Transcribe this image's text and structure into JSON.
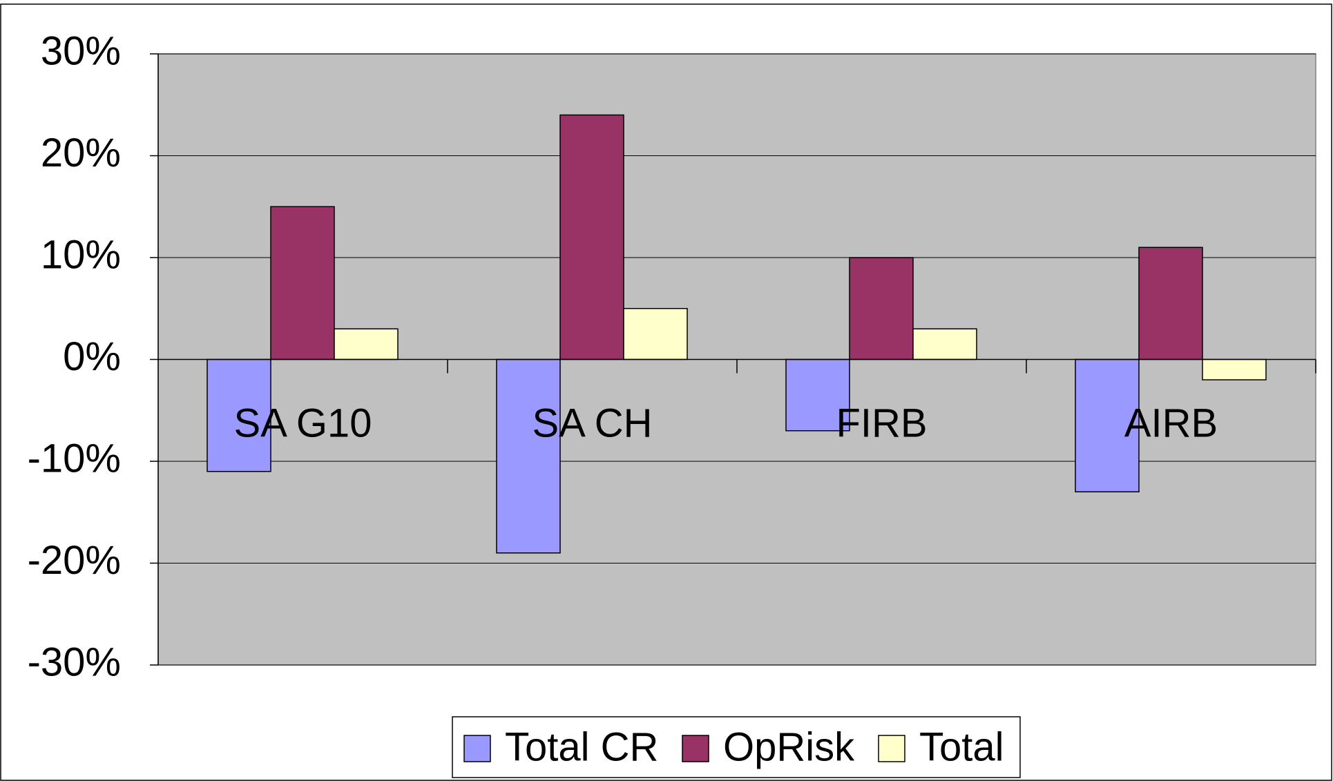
{
  "chart_data": {
    "type": "bar",
    "categories": [
      "SA G10",
      "SA CH",
      "FIRB",
      "AIRB"
    ],
    "series": [
      {
        "name": "Total CR",
        "color": "#9999ff",
        "values": [
          -11,
          -19,
          -7,
          -13
        ]
      },
      {
        "name": "OpRisk",
        "color": "#993366",
        "values": [
          15,
          24,
          10,
          11
        ]
      },
      {
        "name": "Total",
        "color": "#ffffcc",
        "values": [
          3,
          5,
          3,
          -2
        ]
      }
    ],
    "ylim": [
      -30,
      30
    ],
    "yticks": [
      {
        "value": -30,
        "label": "-30%"
      },
      {
        "value": -20,
        "label": "-20%"
      },
      {
        "value": -10,
        "label": "-10%"
      },
      {
        "value": 0,
        "label": "0%"
      },
      {
        "value": 10,
        "label": "10%"
      },
      {
        "value": 20,
        "label": "20%"
      },
      {
        "value": 30,
        "label": "30%"
      }
    ],
    "grid": true,
    "legend": "bottom",
    "plot_background": "#c0c0c0"
  }
}
